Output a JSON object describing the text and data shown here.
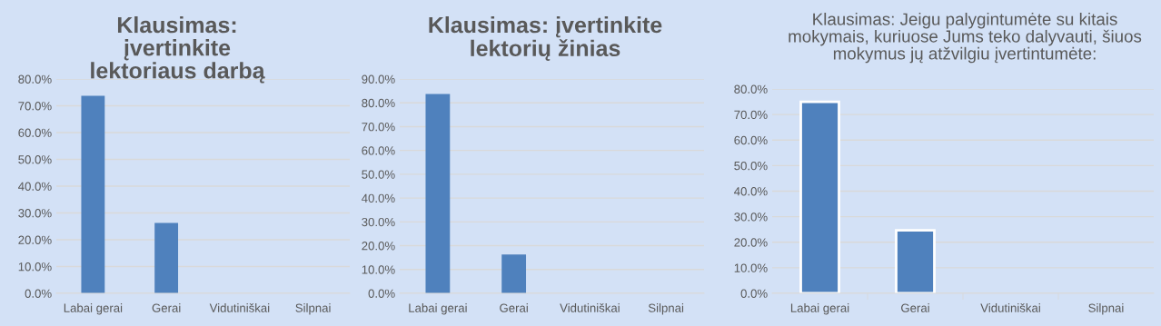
{
  "chart_data": [
    {
      "type": "bar",
      "title": "Klausimas: įvertinkite lektoriaus darbą",
      "categories": [
        "Labai gerai",
        "Gerai",
        "Vidutiniškai",
        "Silpnai"
      ],
      "values": [
        73.7,
        26.3,
        null,
        null
      ],
      "color": "#4f81bd",
      "ylim": [
        0,
        80
      ],
      "yticks": [
        {
          "value": 0,
          "label": "0.0%"
        },
        {
          "value": 10,
          "label": "10.0%"
        },
        {
          "value": 20,
          "label": "20.0%"
        },
        {
          "value": 30,
          "label": "30.0%"
        },
        {
          "value": 40,
          "label": "40.0%"
        },
        {
          "value": 50,
          "label": "50.0%"
        },
        {
          "value": 60,
          "label": "60.0%"
        },
        {
          "value": 70,
          "label": "70.0%"
        },
        {
          "value": 80,
          "label": "80.0%"
        }
      ],
      "grid": "y",
      "legend": false
    },
    {
      "type": "bar",
      "title": "Klausimas: įvertinkite lektorių žinias",
      "categories": [
        "Labai gerai",
        "Gerai",
        "Vidutiniškai",
        "Silpnai"
      ],
      "values": [
        83.7,
        16.3,
        null,
        null
      ],
      "color": "#4f81bd",
      "ylim": [
        0,
        90
      ],
      "yticks": [
        {
          "value": 0,
          "label": "0.0%"
        },
        {
          "value": 10,
          "label": "10.0%"
        },
        {
          "value": 20,
          "label": "20.0%"
        },
        {
          "value": 30,
          "label": "30.0%"
        },
        {
          "value": 40,
          "label": "40.0%"
        },
        {
          "value": 50,
          "label": "50.0%"
        },
        {
          "value": 60,
          "label": "60.0%"
        },
        {
          "value": 70,
          "label": "70.0%"
        },
        {
          "value": 80,
          "label": "80.0%"
        },
        {
          "value": 90,
          "label": "90.0%"
        }
      ],
      "grid": "y",
      "legend": false
    },
    {
      "type": "bar",
      "title": "Klausimas: Jeigu palygintumėte su kitais mokymais, kuriuose Jums teko dalyvauti, šiuos mokymus jų atžvilgiu įvertintumėte:",
      "categories": [
        "Labai gerai",
        "Gerai",
        "Vidutiniškai",
        "Silpnai"
      ],
      "values": [
        75.0,
        24.7,
        null,
        null
      ],
      "color": "#4f81bd",
      "ylim": [
        0,
        80
      ],
      "yticks": [
        {
          "value": 0,
          "label": "0.0%"
        },
        {
          "value": 10,
          "label": "10.0%"
        },
        {
          "value": 20,
          "label": "20.0%"
        },
        {
          "value": 30,
          "label": "30.0%"
        },
        {
          "value": 40,
          "label": "40.0%"
        },
        {
          "value": 50,
          "label": "50.0%"
        },
        {
          "value": 60,
          "label": "60.0%"
        },
        {
          "value": 70,
          "label": "70.0%"
        },
        {
          "value": 80,
          "label": "80.0%"
        }
      ],
      "grid": "y",
      "legend": false
    }
  ]
}
